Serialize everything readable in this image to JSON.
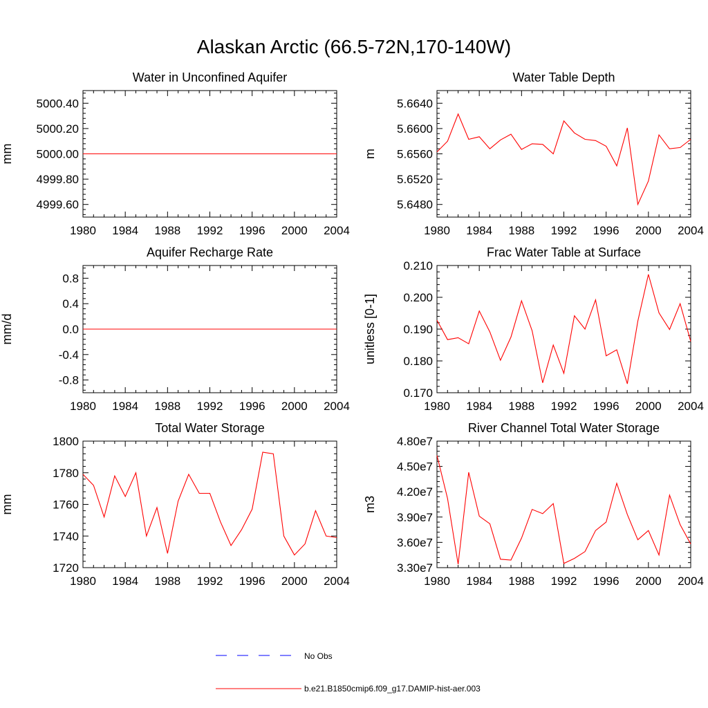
{
  "figure": {
    "title": "Alaskan Arctic (66.5-72N,170-140W)"
  },
  "legend": {
    "entries": [
      {
        "label": "No Obs",
        "color": "#0000ff",
        "style": "dashed"
      },
      {
        "label": "b.e21.B1850cmip6.f09_g17.DAMIP-hist-aer.003",
        "color": "#ff0000",
        "style": "solid"
      }
    ]
  },
  "chart_data": [
    {
      "type": "line",
      "title": "Water in Unconfined Aquifer",
      "ylabel": "mm",
      "xlim": [
        1980,
        2004
      ],
      "ylim": [
        4999.5,
        5000.5
      ],
      "xticks": [
        1980,
        1984,
        1988,
        1992,
        1996,
        2000,
        2004
      ],
      "xtick_labels": [
        "1980",
        "1984",
        "1988",
        "1992",
        "1996",
        "2000",
        "2004"
      ],
      "yticks": [
        4999.6,
        4999.8,
        5000.0,
        5000.2,
        5000.4
      ],
      "ytick_labels": [
        "4999.60",
        "4999.80",
        "5000.00",
        "5000.20",
        "5000.40"
      ],
      "series": [
        {
          "name": "b.e21.B1850cmip6.f09_g17.DAMIP-hist-aer.003",
          "color": "#ff0000",
          "x": [
            1980,
            2004
          ],
          "y": [
            5000.0,
            5000.0
          ]
        }
      ]
    },
    {
      "type": "line",
      "title": "Water Table Depth",
      "ylabel": "m",
      "xlim": [
        1980,
        2004
      ],
      "ylim": [
        5.646,
        5.666
      ],
      "xticks": [
        1980,
        1984,
        1988,
        1992,
        1996,
        2000,
        2004
      ],
      "xtick_labels": [
        "1980",
        "1984",
        "1988",
        "1992",
        "1996",
        "2000",
        "2004"
      ],
      "yticks": [
        5.648,
        5.652,
        5.656,
        5.66,
        5.664
      ],
      "ytick_labels": [
        "5.6480",
        "5.6520",
        "5.6560",
        "5.6600",
        "5.6640"
      ],
      "series": [
        {
          "name": "b.e21.B1850cmip6.f09_g17.DAMIP-hist-aer.003",
          "color": "#ff0000",
          "x": [
            1980,
            1981,
            1982,
            1983,
            1984,
            1985,
            1986,
            1987,
            1988,
            1989,
            1990,
            1991,
            1992,
            1993,
            1994,
            1995,
            1996,
            1997,
            1998,
            1999,
            2000,
            2001,
            2002,
            2003,
            2004
          ],
          "y": [
            5.6563,
            5.658,
            5.6623,
            5.6583,
            5.6587,
            5.6568,
            5.6582,
            5.6591,
            5.6567,
            5.6576,
            5.6575,
            5.656,
            5.6612,
            5.6593,
            5.6583,
            5.6581,
            5.6572,
            5.6541,
            5.6601,
            5.648,
            5.6517,
            5.659,
            5.6568,
            5.657,
            5.6583
          ]
        }
      ]
    },
    {
      "type": "line",
      "title": "Aquifer Recharge Rate",
      "ylabel": "mm/d",
      "xlim": [
        1980,
        2004
      ],
      "ylim": [
        -1.0,
        1.0
      ],
      "xticks": [
        1980,
        1984,
        1988,
        1992,
        1996,
        2000,
        2004
      ],
      "xtick_labels": [
        "1980",
        "1984",
        "1988",
        "1992",
        "1996",
        "2000",
        "2004"
      ],
      "yticks": [
        -0.8,
        -0.4,
        0.0,
        0.4,
        0.8
      ],
      "ytick_labels": [
        "-0.8",
        "-0.4",
        "0.0",
        "0.4",
        "0.8"
      ],
      "series": [
        {
          "name": "b.e21.B1850cmip6.f09_g17.DAMIP-hist-aer.003",
          "color": "#ff0000",
          "x": [
            1980,
            2004
          ],
          "y": [
            0.0,
            0.0
          ]
        }
      ]
    },
    {
      "type": "line",
      "title": "Frac Water Table at Surface",
      "ylabel": "unitless [0-1]",
      "xlim": [
        1980,
        2004
      ],
      "ylim": [
        0.17,
        0.21
      ],
      "xticks": [
        1980,
        1984,
        1988,
        1992,
        1996,
        2000,
        2004
      ],
      "xtick_labels": [
        "1980",
        "1984",
        "1988",
        "1992",
        "1996",
        "2000",
        "2004"
      ],
      "yticks": [
        0.17,
        0.18,
        0.19,
        0.2,
        0.21
      ],
      "ytick_labels": [
        "0.170",
        "0.180",
        "0.190",
        "0.200",
        "0.210"
      ],
      "series": [
        {
          "name": "b.e21.B1850cmip6.f09_g17.DAMIP-hist-aer.003",
          "color": "#ff0000",
          "x": [
            1980,
            1981,
            1982,
            1983,
            1984,
            1985,
            1986,
            1987,
            1988,
            1989,
            1990,
            1991,
            1992,
            1993,
            1994,
            1995,
            1996,
            1997,
            1998,
            1999,
            2000,
            2001,
            2002,
            2003,
            2004
          ],
          "y": [
            0.1928,
            0.1867,
            0.1873,
            0.1854,
            0.1957,
            0.1891,
            0.1802,
            0.1875,
            0.1989,
            0.1895,
            0.1731,
            0.185,
            0.1761,
            0.1942,
            0.19,
            0.1992,
            0.1816,
            0.1835,
            0.1728,
            0.1925,
            0.2072,
            0.1951,
            0.1899,
            0.198,
            0.1861
          ]
        }
      ]
    },
    {
      "type": "line",
      "title": "Total Water Storage",
      "ylabel": "mm",
      "xlim": [
        1980,
        2004
      ],
      "ylim": [
        1720,
        1800
      ],
      "xticks": [
        1980,
        1984,
        1988,
        1992,
        1996,
        2000,
        2004
      ],
      "xtick_labels": [
        "1980",
        "1984",
        "1988",
        "1992",
        "1996",
        "2000",
        "2004"
      ],
      "yticks": [
        1720,
        1740,
        1760,
        1780,
        1800
      ],
      "ytick_labels": [
        "1720",
        "1740",
        "1760",
        "1780",
        "1800"
      ],
      "series": [
        {
          "name": "b.e21.B1850cmip6.f09_g17.DAMIP-hist-aer.003",
          "color": "#ff0000",
          "x": [
            1980,
            1981,
            1982,
            1983,
            1984,
            1985,
            1986,
            1987,
            1988,
            1989,
            1990,
            1991,
            1992,
            1993,
            1994,
            1995,
            1996,
            1997,
            1998,
            1999,
            2000,
            2001,
            2002,
            2003,
            2004
          ],
          "y": [
            1779,
            1772,
            1752,
            1778,
            1765,
            1780,
            1740,
            1758,
            1729,
            1762,
            1779,
            1767,
            1767,
            1749,
            1734,
            1744,
            1757,
            1793,
            1792,
            1740,
            1728,
            1735,
            1756,
            1740,
            1739
          ]
        }
      ]
    },
    {
      "type": "line",
      "title": "River Channel Total Water Storage",
      "ylabel": "m3",
      "xlim": [
        1980,
        2004
      ],
      "ylim": [
        33000000.0,
        48000000.0
      ],
      "xticks": [
        1980,
        1984,
        1988,
        1992,
        1996,
        2000,
        2004
      ],
      "xtick_labels": [
        "1980",
        "1984",
        "1988",
        "1992",
        "1996",
        "2000",
        "2004"
      ],
      "yticks": [
        33000000.0,
        36000000.0,
        39000000.0,
        42000000.0,
        45000000.0,
        48000000.0
      ],
      "ytick_labels": [
        "3.30e7",
        "3.60e7",
        "3.90e7",
        "4.20e7",
        "4.50e7",
        "4.80e7"
      ],
      "series": [
        {
          "name": "b.e21.B1850cmip6.f09_g17.DAMIP-hist-aer.003",
          "color": "#ff0000",
          "x": [
            1980,
            1981,
            1982,
            1983,
            1984,
            1985,
            1986,
            1987,
            1988,
            1989,
            1990,
            1991,
            1992,
            1993,
            1994,
            1995,
            1996,
            1997,
            1998,
            1999,
            2000,
            2001,
            2002,
            2003,
            2004
          ],
          "y": [
            46300000.0,
            41200000.0,
            33400000.0,
            44300000.0,
            39100000.0,
            38200000.0,
            34000000.0,
            33900000.0,
            36500000.0,
            39900000.0,
            39400000.0,
            40600000.0,
            33500000.0,
            34100000.0,
            34900000.0,
            37400000.0,
            38400000.0,
            43000000.0,
            39300000.0,
            36300000.0,
            37400000.0,
            34500000.0,
            41600000.0,
            38100000.0,
            35800000.0
          ]
        }
      ]
    }
  ]
}
